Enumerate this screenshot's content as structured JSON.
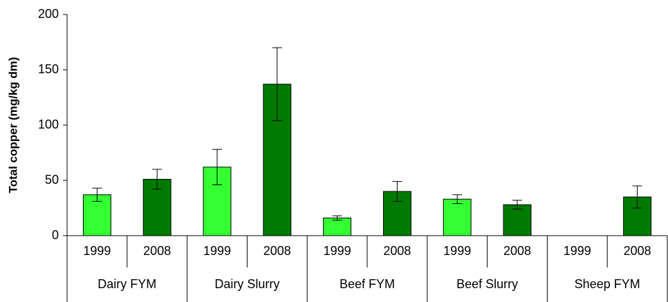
{
  "chart_data": {
    "type": "bar",
    "y_label": "Total copper (mg/kg dm)",
    "categories": [
      "Dairy FYM",
      "Dairy Slurry",
      "Beef FYM",
      "Beef Slurry",
      "Sheep FYM"
    ],
    "series": [
      {
        "name": "1999",
        "color": "#33ff33",
        "values": [
          37,
          62,
          16,
          33,
          null
        ],
        "errors": [
          6,
          16,
          2,
          4,
          null
        ]
      },
      {
        "name": "2008",
        "color": "#007a00",
        "values": [
          51,
          137,
          40,
          28,
          35
        ],
        "errors": [
          9,
          33,
          9,
          4,
          10
        ]
      }
    ],
    "ylim": [
      0,
      200
    ],
    "yticks": [
      0,
      50,
      100,
      150,
      200
    ]
  }
}
